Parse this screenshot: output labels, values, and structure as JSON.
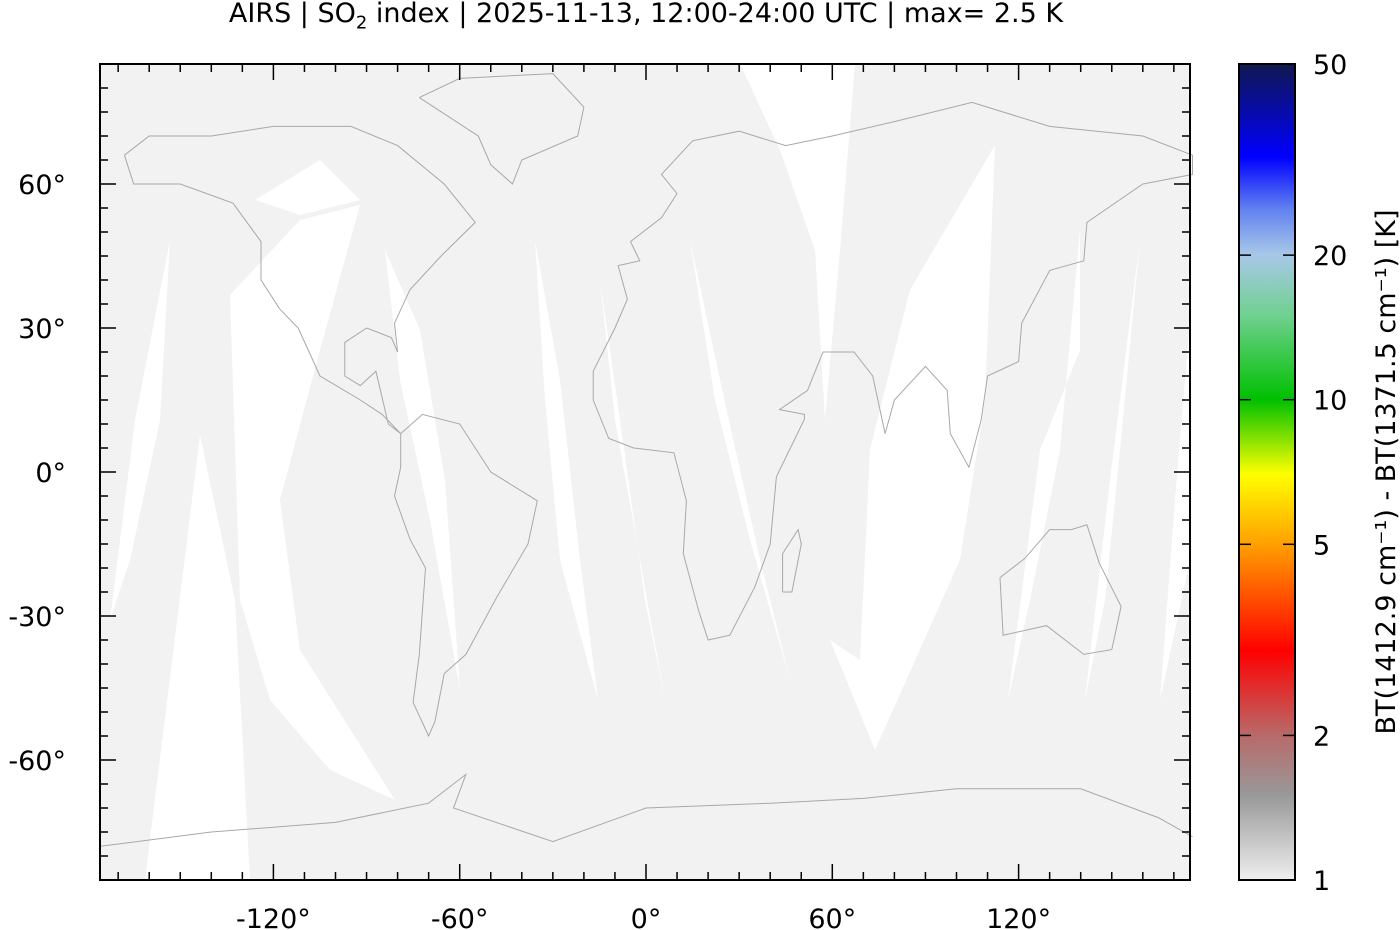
{
  "chart_data": {
    "type": "map",
    "title": {
      "prefix": "AIRS | SO",
      "subscript": "2",
      "suffix": " index | 2025-11-13, 12:00-24:00 UTC | max= 2.5 K"
    },
    "projection": "cylindrical",
    "xlim": [
      -176,
      176
    ],
    "ylim": [
      -85,
      85
    ],
    "x_ticks": [
      -120,
      -60,
      0,
      60,
      120
    ],
    "x_tick_labels": [
      "-120°",
      "-60°",
      "0°",
      "60°",
      "120°"
    ],
    "y_ticks": [
      60,
      30,
      0,
      -30,
      -60
    ],
    "y_tick_labels": [
      "60°",
      "30°",
      "0°",
      "-30°",
      "-60°"
    ],
    "land_color": "#a8a8a8",
    "swath_color": "#f2f2f2",
    "no_data_color": "#ffffff",
    "colorbar": {
      "scale": "log",
      "range": [
        1,
        50
      ],
      "ticks": [
        1,
        2,
        5,
        10,
        20,
        50
      ],
      "tick_labels": [
        "1",
        "2",
        "5",
        "10",
        "20",
        "50"
      ],
      "label": "BT(1412.9 cm⁻¹) - BT(1371.5 cm⁻¹) [K]",
      "colors": [
        {
          "value": 1,
          "color": "#eeeeee"
        },
        {
          "value": 1.5,
          "color": "#999999"
        },
        {
          "value": 2,
          "color": "#b86a6a"
        },
        {
          "value": 3,
          "color": "#ff0000"
        },
        {
          "value": 5,
          "color": "#ffa000"
        },
        {
          "value": 7,
          "color": "#ffff00"
        },
        {
          "value": 10,
          "color": "#00c000"
        },
        {
          "value": 15,
          "color": "#70d090"
        },
        {
          "value": 20,
          "color": "#a8c8e8"
        },
        {
          "value": 25,
          "color": "#6080f0"
        },
        {
          "value": 32,
          "color": "#0000ff"
        },
        {
          "value": 50,
          "color": "#101850"
        }
      ]
    }
  }
}
